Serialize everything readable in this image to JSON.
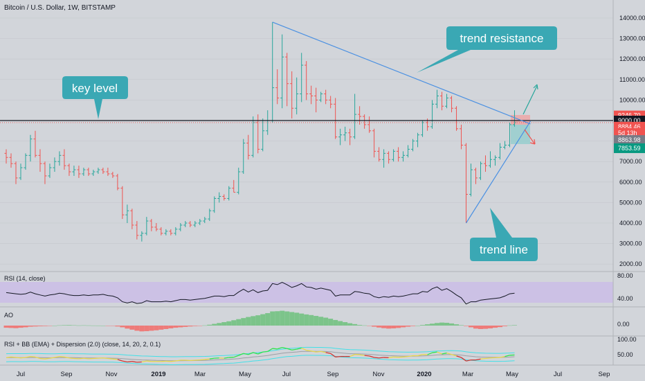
{
  "header": {
    "symbol_title": "Bitcoin / U.S. Dollar, 1W, BITSTAMP"
  },
  "callouts": {
    "trend_resistance": "trend resistance",
    "key_level": "key level",
    "trend_line": "trend line"
  },
  "price_axis": {
    "ticks": [
      "14000.00",
      "13000.00",
      "12000.00",
      "11000.00",
      "10000.00",
      "9000.00",
      "8000.00",
      "7000.00",
      "6000.00",
      "5000.00",
      "4000.00",
      "3000.00",
      "2000.00"
    ],
    "tags": [
      {
        "text": "9246.70",
        "value": 9246.7,
        "bg": "#f05350"
      },
      {
        "text": "9000.00",
        "value": 9000,
        "bg": "#131722"
      },
      {
        "text": "8884.46",
        "value": 8700,
        "bg": "#f05350"
      },
      {
        "text": "5d 13h",
        "value": 8400,
        "bg": "#f05350"
      },
      {
        "text": "8863.98",
        "value": 8050,
        "bg": "#787b86"
      },
      {
        "text": "7853.59",
        "value": 7650,
        "bg": "#089981"
      }
    ]
  },
  "time_axis": {
    "labels": [
      "Jul",
      "Sep",
      "Nov",
      "2019",
      "Mar",
      "May",
      "Jul",
      "Sep",
      "Nov",
      "2020",
      "Mar",
      "May",
      "Jul",
      "Sep"
    ]
  },
  "panes": {
    "rsi": {
      "title": "RSI (14, close)",
      "ticks": [
        "80.00",
        "40.00"
      ]
    },
    "ao": {
      "title": "AO",
      "ticks": [
        "0.00"
      ]
    },
    "rsibb": {
      "title": "RSI + BB (EMA) + Dispersion (2.0) (close, 14, 20, 2, 0.1)",
      "ticks": [
        "100.00",
        "50.00"
      ]
    }
  },
  "colors": {
    "up": "#26a69a",
    "down": "#ef5350",
    "trend": "#4a90e2",
    "callout": "#3aa8b4",
    "rsi_band": "#cbbde6"
  },
  "chart_data": {
    "type": "candlestick",
    "title": "Bitcoin / U.S. Dollar, 1W, BITSTAMP",
    "ylim": [
      1500,
      15000
    ],
    "candles": [
      [
        7400,
        7600,
        6900,
        7200
      ],
      [
        7200,
        7400,
        6700,
        6900
      ],
      [
        6900,
        7000,
        5900,
        6200
      ],
      [
        6200,
        6900,
        6100,
        6700
      ],
      [
        6700,
        7400,
        6600,
        7300
      ],
      [
        7300,
        8300,
        7000,
        8100
      ],
      [
        8100,
        8500,
        7200,
        7300
      ],
      [
        7300,
        7600,
        6500,
        6900
      ],
      [
        6900,
        7000,
        5900,
        6300
      ],
      [
        6300,
        6900,
        6200,
        6700
      ],
      [
        6700,
        7200,
        6500,
        7000
      ],
      [
        7000,
        7500,
        6800,
        7300
      ],
      [
        7300,
        7600,
        6600,
        6800
      ],
      [
        6800,
        6900,
        6300,
        6500
      ],
      [
        6500,
        6800,
        6300,
        6600
      ],
      [
        6600,
        6800,
        6200,
        6400
      ],
      [
        6400,
        6700,
        6300,
        6600
      ],
      [
        6600,
        6700,
        6300,
        6400
      ],
      [
        6400,
        6600,
        6300,
        6500
      ],
      [
        6500,
        6700,
        6400,
        6600
      ],
      [
        6600,
        6700,
        6400,
        6500
      ],
      [
        6500,
        6700,
        6300,
        6400
      ],
      [
        6400,
        6500,
        6200,
        6300
      ],
      [
        6300,
        6400,
        5600,
        5700
      ],
      [
        5700,
        5800,
        4200,
        4400
      ],
      [
        4400,
        4900,
        4000,
        4600
      ],
      [
        4600,
        4700,
        3700,
        3900
      ],
      [
        3900,
        4100,
        3200,
        3400
      ],
      [
        3400,
        3600,
        3100,
        3500
      ],
      [
        3500,
        4300,
        3400,
        4100
      ],
      [
        4100,
        4200,
        3600,
        3800
      ],
      [
        3800,
        4000,
        3600,
        3700
      ],
      [
        3700,
        3800,
        3400,
        3500
      ],
      [
        3500,
        3700,
        3400,
        3600
      ],
      [
        3600,
        3700,
        3400,
        3500
      ],
      [
        3500,
        3800,
        3400,
        3700
      ],
      [
        3700,
        4000,
        3600,
        3900
      ],
      [
        3900,
        4100,
        3800,
        4000
      ],
      [
        4000,
        4100,
        3800,
        3900
      ],
      [
        3900,
        4100,
        3800,
        4000
      ],
      [
        4000,
        4200,
        3900,
        4100
      ],
      [
        4100,
        4300,
        4000,
        4200
      ],
      [
        4200,
        4700,
        4100,
        4600
      ],
      [
        4600,
        5300,
        4500,
        5200
      ],
      [
        5200,
        5500,
        5000,
        5300
      ],
      [
        5300,
        5400,
        5100,
        5200
      ],
      [
        5200,
        5800,
        5100,
        5700
      ],
      [
        5700,
        6100,
        5500,
        5500
      ],
      [
        5500,
        6700,
        5400,
        6500
      ],
      [
        6500,
        8100,
        6400,
        7900
      ],
      [
        7900,
        8300,
        7100,
        7300
      ],
      [
        7300,
        9200,
        7200,
        8900
      ],
      [
        8900,
        9300,
        7400,
        7600
      ],
      [
        7600,
        9100,
        7500,
        8500
      ],
      [
        8500,
        9500,
        8300,
        9000
      ],
      [
        9000,
        13800,
        8900,
        10600
      ],
      [
        10600,
        11500,
        9800,
        10100
      ],
      [
        10100,
        13200,
        9600,
        12100
      ],
      [
        12100,
        12300,
        9700,
        10800
      ],
      [
        10800,
        11400,
        9100,
        9600
      ],
      [
        9600,
        11100,
        9300,
        10300
      ],
      [
        10300,
        12300,
        9900,
        11700
      ],
      [
        11700,
        11900,
        10000,
        10300
      ],
      [
        10300,
        10700,
        9800,
        10200
      ],
      [
        10200,
        10600,
        9400,
        10000
      ],
      [
        10000,
        10400,
        9900,
        10300
      ],
      [
        10300,
        10500,
        9800,
        10000
      ],
      [
        10000,
        10200,
        9600,
        9800
      ],
      [
        9800,
        10100,
        8100,
        8200
      ],
      [
        8200,
        8600,
        7800,
        8300
      ],
      [
        8300,
        8700,
        8000,
        8400
      ],
      [
        8400,
        8600,
        7800,
        8200
      ],
      [
        8200,
        10300,
        8100,
        9300
      ],
      [
        9300,
        9700,
        8800,
        9200
      ],
      [
        9200,
        9300,
        8600,
        8800
      ],
      [
        8800,
        9200,
        8400,
        8500
      ],
      [
        8500,
        8600,
        7200,
        7500
      ],
      [
        7500,
        7700,
        7000,
        7100
      ],
      [
        7100,
        7600,
        6700,
        7400
      ],
      [
        7400,
        7500,
        6900,
        7100
      ],
      [
        7100,
        7600,
        7000,
        7500
      ],
      [
        7500,
        7700,
        7000,
        7200
      ],
      [
        7200,
        7500,
        7000,
        7300
      ],
      [
        7300,
        7800,
        7200,
        7600
      ],
      [
        7600,
        8100,
        7500,
        8000
      ],
      [
        8000,
        8400,
        7700,
        8300
      ],
      [
        8300,
        9000,
        8200,
        8900
      ],
      [
        8900,
        9100,
        8500,
        8700
      ],
      [
        8700,
        10000,
        8600,
        9800
      ],
      [
        9800,
        10500,
        9600,
        10200
      ],
      [
        10200,
        10400,
        9500,
        9700
      ],
      [
        9700,
        10300,
        9600,
        10100
      ],
      [
        10100,
        10200,
        9400,
        9600
      ],
      [
        9600,
        9700,
        8500,
        8600
      ],
      [
        8600,
        8800,
        7600,
        7800
      ],
      [
        7800,
        7900,
        4000,
        5400
      ],
      [
        5400,
        6900,
        5300,
        6600
      ],
      [
        6600,
        6700,
        5900,
        6200
      ],
      [
        6200,
        7000,
        6100,
        6900
      ],
      [
        6900,
        7300,
        6500,
        6800
      ],
      [
        6800,
        7500,
        6700,
        7100
      ],
      [
        7100,
        7300,
        6800,
        7200
      ],
      [
        7200,
        7900,
        7100,
        7700
      ],
      [
        7700,
        8000,
        7600,
        7800
      ],
      [
        7800,
        8900,
        7700,
        8800
      ],
      [
        8800,
        9500,
        8700,
        8900
      ]
    ],
    "key_level": 9000,
    "dotted_level": 8850,
    "resistance_line": [
      [
        55,
        13800
      ],
      [
        104,
        8900
      ]
    ],
    "trend_line_pts": [
      [
        95,
        4000
      ],
      [
        104,
        8900
      ]
    ],
    "rsi": [
      54,
      53,
      52,
      51,
      52,
      55,
      52,
      50,
      48,
      50,
      51,
      53,
      52,
      50,
      49,
      49,
      50,
      49,
      50,
      50,
      51,
      49,
      48,
      45,
      38,
      36,
      38,
      35,
      36,
      40,
      38,
      38,
      38,
      39,
      38,
      40,
      42,
      42,
      41,
      42,
      43,
      44,
      46,
      48,
      48,
      47,
      49,
      49,
      55,
      60,
      55,
      59,
      54,
      57,
      58,
      70,
      68,
      72,
      68,
      63,
      66,
      70,
      64,
      63,
      60,
      62,
      60,
      58,
      48,
      50,
      50,
      50,
      56,
      55,
      53,
      52,
      47,
      45,
      47,
      46,
      48,
      47,
      48,
      50,
      52,
      52,
      56,
      55,
      61,
      64,
      58,
      61,
      56,
      50,
      45,
      34,
      38,
      38,
      41,
      42,
      43,
      44,
      45,
      48,
      52,
      53
    ],
    "ao": [
      -500,
      -550,
      -600,
      -500,
      -400,
      -250,
      -200,
      -150,
      -120,
      -80,
      0,
      60,
      100,
      120,
      80,
      40,
      60,
      40,
      20,
      10,
      0,
      -30,
      -80,
      -200,
      -400,
      -700,
      -950,
      -1200,
      -1350,
      -1300,
      -1200,
      -1100,
      -950,
      -800,
      -650,
      -500,
      -400,
      -300,
      -200,
      -120,
      -40,
      50,
      200,
      400,
      600,
      800,
      1000,
      1250,
      1500,
      1750,
      2000,
      2200,
      2400,
      2650,
      2900,
      3300,
      3350,
      3450,
      3300,
      3150,
      3000,
      2800,
      2600,
      2450,
      2250,
      2050,
      1850,
      1600,
      1300,
      1050,
      800,
      550,
      350,
      150,
      50,
      -50,
      -250,
      -450,
      -600,
      -700,
      -650,
      -550,
      -400,
      -250,
      -120,
      0,
      150,
      300,
      450,
      600,
      700,
      650,
      500,
      300,
      100,
      -100,
      -400,
      -700,
      -800,
      -750,
      -650,
      -500,
      -350,
      -150,
      50,
      100
    ],
    "rsibb": [
      35,
      38,
      36,
      34,
      36,
      40,
      38,
      32,
      30,
      33,
      36,
      40,
      38,
      34,
      32,
      31,
      33,
      31,
      32,
      33,
      34,
      32,
      30,
      28,
      22,
      18,
      20,
      17,
      18,
      22,
      20,
      20,
      20,
      21,
      20,
      22,
      25,
      25,
      24,
      25,
      26,
      28,
      30,
      33,
      34,
      33,
      36,
      37,
      44,
      52,
      48,
      56,
      50,
      58,
      60,
      72,
      70,
      76,
      72,
      66,
      69,
      74,
      65,
      62,
      58,
      60,
      56,
      52,
      38,
      40,
      40,
      40,
      48,
      47,
      44,
      42,
      36,
      34,
      36,
      35,
      38,
      37,
      38,
      40,
      43,
      43,
      48,
      47,
      55,
      58,
      50,
      54,
      48,
      42,
      36,
      22,
      26,
      26,
      30,
      32,
      34,
      35,
      36,
      40,
      45,
      46
    ]
  }
}
